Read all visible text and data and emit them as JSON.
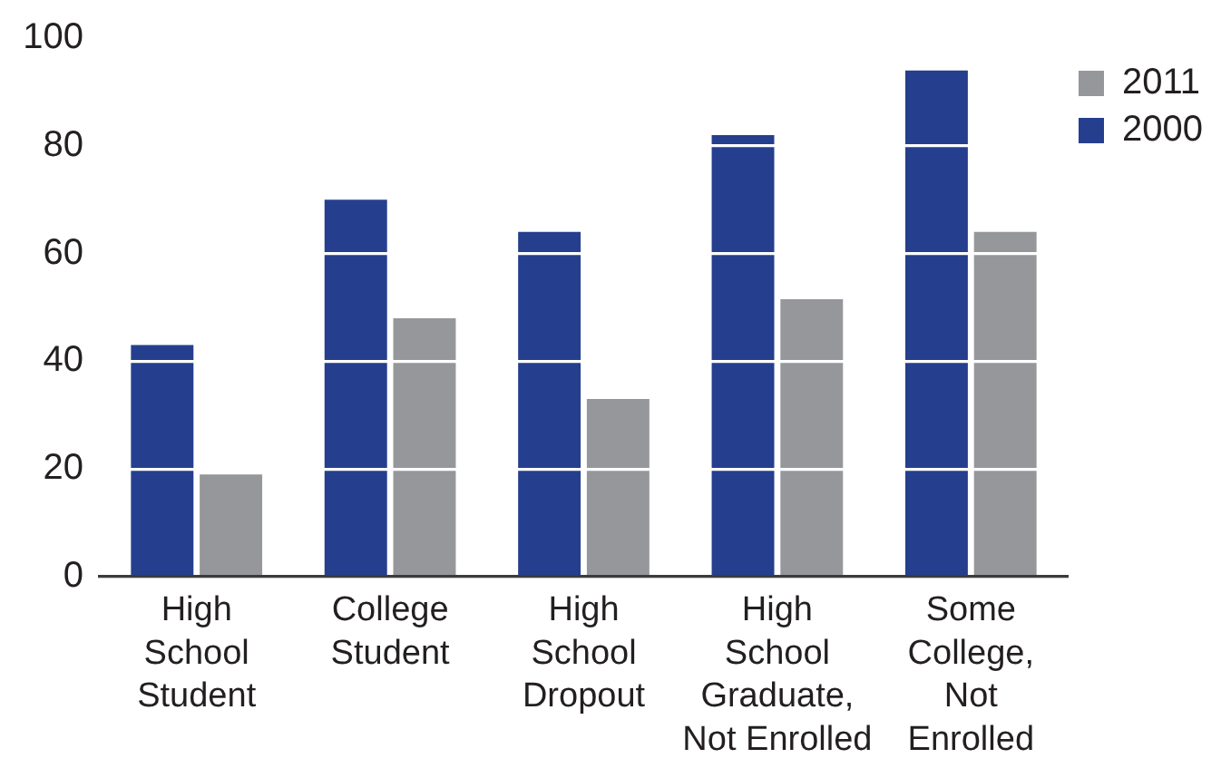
{
  "chart_data": {
    "type": "bar",
    "categories": [
      "High\nSchool\nStudent",
      "College\nStudent",
      "High\nSchool\nDropout",
      "High\nSchool\nGraduate,\nNot Enrolled",
      "Some\nCollege,\nNot\nEnrolled"
    ],
    "series": [
      {
        "name": "2000",
        "color": "#253f8e",
        "values": [
          43,
          70,
          64,
          82,
          94
        ]
      },
      {
        "name": "2011",
        "color": "#96979b",
        "values": [
          19,
          48,
          33,
          51.5,
          64
        ]
      }
    ],
    "ylim": [
      0,
      100
    ],
    "yticks": [
      0,
      20,
      40,
      60,
      80,
      100
    ],
    "grid": "y",
    "legend": "top right"
  }
}
